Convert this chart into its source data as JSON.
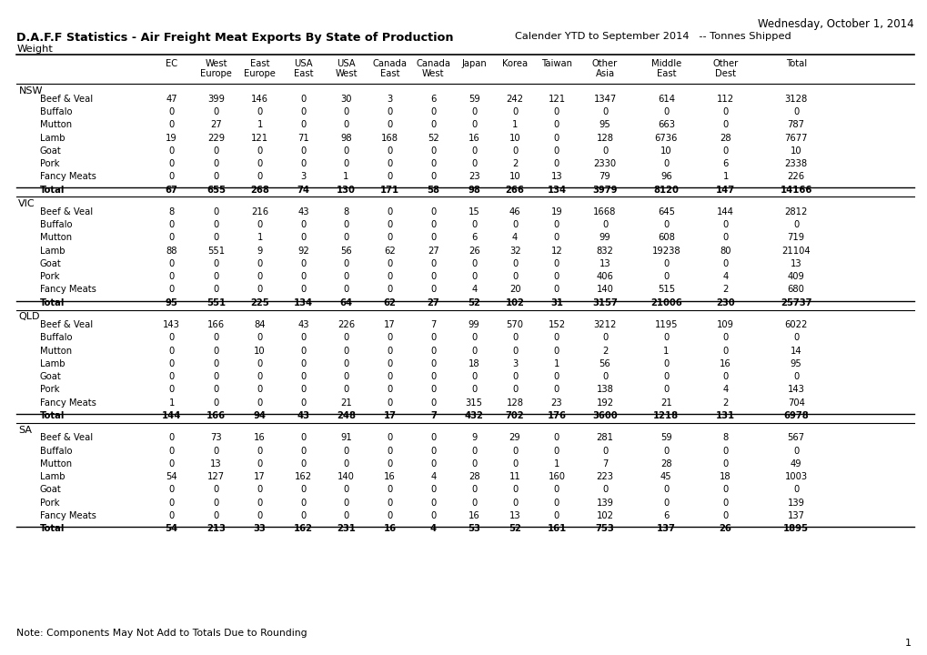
{
  "title_bold": "D.A.F.F Statistics - Air Freight Meat Exports By State of Production",
  "title_normal": "Calender YTD to September 2014   -- Tonnes Shipped",
  "subtitle": "Weight",
  "date_text": "Wednesday, October 1, 2014",
  "note": "Note: Components May Not Add to Totals Due to Rounding",
  "page_num": "1",
  "columns": [
    "EC",
    "West\nEurope",
    "East\nEurope",
    "USA\nEast",
    "USA\nWest",
    "Canada\nEast",
    "Canada\nWest",
    "Japan",
    "Korea",
    "Taiwan",
    "Other\nAsia",
    "Middle\nEast",
    "Other\nDest",
    "Total"
  ],
  "states": [
    "NSW",
    "VIC",
    "QLD",
    "SA"
  ],
  "meat_types": [
    "Beef & Veal",
    "Buffalo",
    "Mutton",
    "Lamb",
    "Goat",
    "Pork",
    "Fancy Meats",
    "Total"
  ],
  "data": {
    "NSW": {
      "Beef & Veal": [
        47,
        399,
        146,
        0,
        30,
        3,
        6,
        59,
        242,
        121,
        1347,
        614,
        112,
        3128
      ],
      "Buffalo": [
        0,
        0,
        0,
        0,
        0,
        0,
        0,
        0,
        0,
        0,
        0,
        0,
        0,
        0
      ],
      "Mutton": [
        0,
        27,
        1,
        0,
        0,
        0,
        0,
        0,
        1,
        0,
        95,
        663,
        0,
        787
      ],
      "Lamb": [
        19,
        229,
        121,
        71,
        98,
        168,
        52,
        16,
        10,
        0,
        128,
        6736,
        28,
        7677
      ],
      "Goat": [
        0,
        0,
        0,
        0,
        0,
        0,
        0,
        0,
        0,
        0,
        0,
        10,
        0,
        10
      ],
      "Pork": [
        0,
        0,
        0,
        0,
        0,
        0,
        0,
        0,
        2,
        0,
        2330,
        0,
        6,
        2338
      ],
      "Fancy Meats": [
        0,
        0,
        0,
        3,
        1,
        0,
        0,
        23,
        10,
        13,
        79,
        96,
        1,
        226
      ],
      "Total": [
        67,
        655,
        268,
        74,
        130,
        171,
        58,
        98,
        266,
        134,
        3979,
        8120,
        147,
        14166
      ]
    },
    "VIC": {
      "Beef & Veal": [
        8,
        0,
        216,
        43,
        8,
        0,
        0,
        15,
        46,
        19,
        1668,
        645,
        144,
        2812
      ],
      "Buffalo": [
        0,
        0,
        0,
        0,
        0,
        0,
        0,
        0,
        0,
        0,
        0,
        0,
        0,
        0
      ],
      "Mutton": [
        0,
        0,
        1,
        0,
        0,
        0,
        0,
        6,
        4,
        0,
        99,
        608,
        0,
        719
      ],
      "Lamb": [
        88,
        551,
        9,
        92,
        56,
        62,
        27,
        26,
        32,
        12,
        832,
        19238,
        80,
        21104
      ],
      "Goat": [
        0,
        0,
        0,
        0,
        0,
        0,
        0,
        0,
        0,
        0,
        13,
        0,
        0,
        13
      ],
      "Pork": [
        0,
        0,
        0,
        0,
        0,
        0,
        0,
        0,
        0,
        0,
        406,
        0,
        4,
        409
      ],
      "Fancy Meats": [
        0,
        0,
        0,
        0,
        0,
        0,
        0,
        4,
        20,
        0,
        140,
        515,
        2,
        680
      ],
      "Total": [
        95,
        551,
        225,
        134,
        64,
        62,
        27,
        52,
        102,
        31,
        3157,
        21006,
        230,
        25737
      ]
    },
    "QLD": {
      "Beef & Veal": [
        143,
        166,
        84,
        43,
        226,
        17,
        7,
        99,
        570,
        152,
        3212,
        1195,
        109,
        6022
      ],
      "Buffalo": [
        0,
        0,
        0,
        0,
        0,
        0,
        0,
        0,
        0,
        0,
        0,
        0,
        0,
        0
      ],
      "Mutton": [
        0,
        0,
        10,
        0,
        0,
        0,
        0,
        0,
        0,
        0,
        2,
        1,
        0,
        14
      ],
      "Lamb": [
        0,
        0,
        0,
        0,
        0,
        0,
        0,
        18,
        3,
        1,
        56,
        0,
        16,
        95
      ],
      "Goat": [
        0,
        0,
        0,
        0,
        0,
        0,
        0,
        0,
        0,
        0,
        0,
        0,
        0,
        0
      ],
      "Pork": [
        0,
        0,
        0,
        0,
        0,
        0,
        0,
        0,
        0,
        0,
        138,
        0,
        4,
        143
      ],
      "Fancy Meats": [
        1,
        0,
        0,
        0,
        21,
        0,
        0,
        315,
        128,
        23,
        192,
        21,
        2,
        704
      ],
      "Total": [
        144,
        166,
        94,
        43,
        248,
        17,
        7,
        432,
        702,
        176,
        3600,
        1218,
        131,
        6978
      ]
    },
    "SA": {
      "Beef & Veal": [
        0,
        73,
        16,
        0,
        91,
        0,
        0,
        9,
        29,
        0,
        281,
        59,
        8,
        567
      ],
      "Buffalo": [
        0,
        0,
        0,
        0,
        0,
        0,
        0,
        0,
        0,
        0,
        0,
        0,
        0,
        0
      ],
      "Mutton": [
        0,
        13,
        0,
        0,
        0,
        0,
        0,
        0,
        0,
        1,
        7,
        28,
        0,
        49
      ],
      "Lamb": [
        54,
        127,
        17,
        162,
        140,
        16,
        4,
        28,
        11,
        160,
        223,
        45,
        18,
        1003
      ],
      "Goat": [
        0,
        0,
        0,
        0,
        0,
        0,
        0,
        0,
        0,
        0,
        0,
        0,
        0,
        0
      ],
      "Pork": [
        0,
        0,
        0,
        0,
        0,
        0,
        0,
        0,
        0,
        0,
        139,
        0,
        0,
        139
      ],
      "Fancy Meats": [
        0,
        0,
        0,
        0,
        0,
        0,
        0,
        16,
        13,
        0,
        102,
        6,
        0,
        137
      ],
      "Total": [
        54,
        213,
        33,
        162,
        231,
        16,
        4,
        53,
        52,
        161,
        753,
        137,
        26,
        1895
      ]
    }
  }
}
